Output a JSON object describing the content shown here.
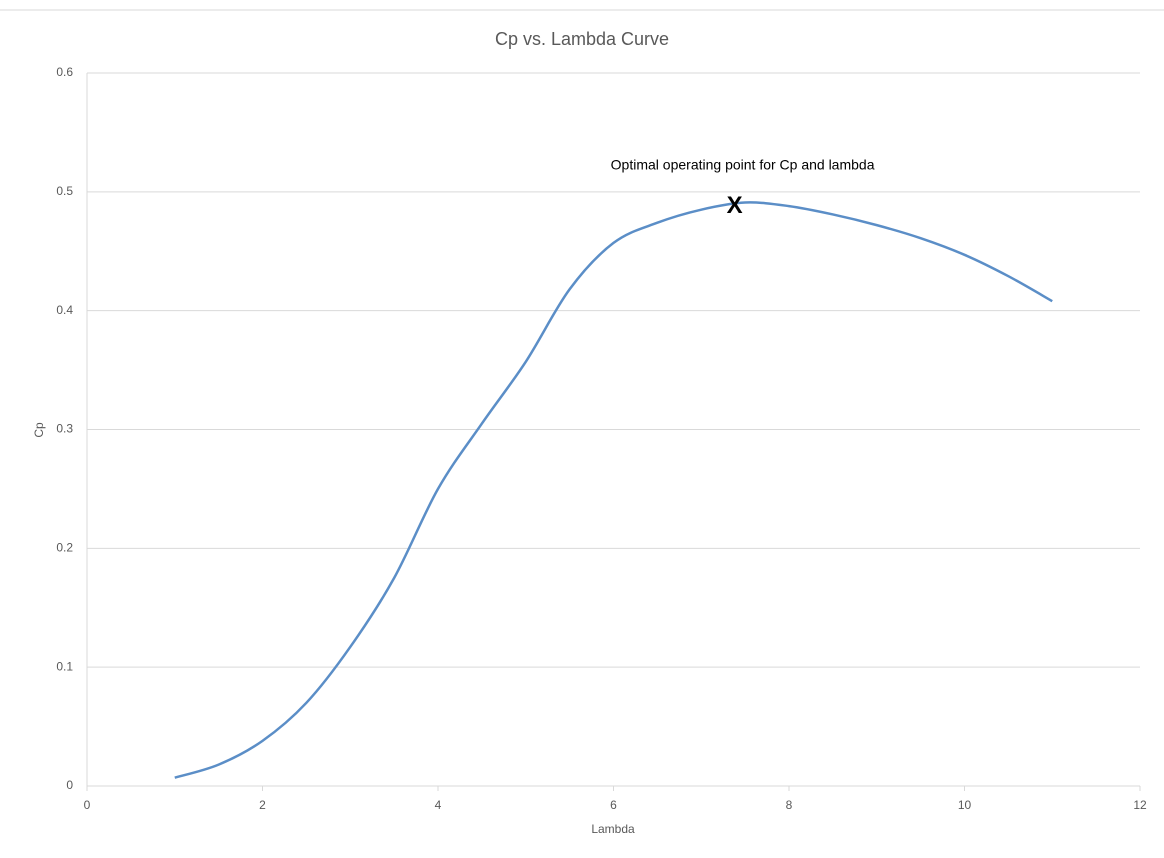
{
  "chart_data": {
    "type": "line",
    "title": "Cp vs. Lambda Curve",
    "x_label": "Lambda",
    "y_label": "Cp",
    "x": [
      1,
      1.5,
      2,
      2.5,
      3,
      3.5,
      4,
      4.5,
      5,
      5.5,
      6,
      6.5,
      7,
      7.5,
      8,
      8.5,
      9,
      9.5,
      10,
      10.5,
      11
    ],
    "series": [
      {
        "name": "Cp",
        "color": "#5b8ec7",
        "values": [
          0.007,
          0.018,
          0.038,
          0.07,
          0.117,
          0.175,
          0.25,
          0.305,
          0.357,
          0.418,
          0.457,
          0.474,
          0.485,
          0.491,
          0.488,
          0.481,
          0.472,
          0.461,
          0.447,
          0.429,
          0.408
        ]
      }
    ],
    "xlim": [
      0,
      12
    ],
    "xticks": [
      0,
      2,
      4,
      6,
      8,
      10,
      12
    ],
    "ylim": [
      0,
      0.6
    ],
    "yticks": [
      0,
      0.1,
      0.2,
      0.3,
      0.4,
      0.5,
      0.6
    ],
    "grid": true,
    "annotation": {
      "text": "Optimal operating point for Cp and lambda",
      "marker": "X",
      "x": 7.38,
      "y": 0.49
    }
  }
}
